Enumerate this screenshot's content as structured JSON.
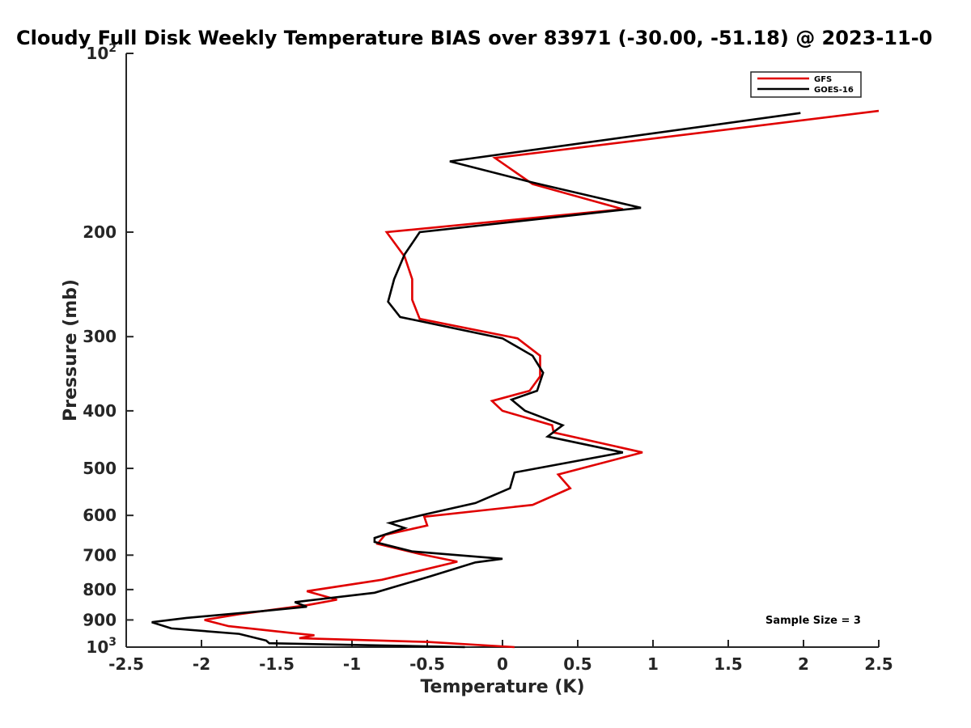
{
  "chart_data": {
    "type": "line",
    "title": "Cloudy Full Disk Weekly Temperature BIAS over 83971 (-30.00, -51.18) @ 2023-11-0",
    "xlabel": "Temperature (K)",
    "ylabel": "Pressure (mb)",
    "xlim": [
      -2.5,
      2.5
    ],
    "ylim": [
      100,
      1000
    ],
    "y_scale": "log",
    "y_direction": "reversed",
    "x_ticks": [
      "-2.5",
      "-2",
      "-1.5",
      "-1",
      "-0.5",
      "0",
      "0.5",
      "1",
      "1.5",
      "2",
      "2.5"
    ],
    "y_ticks": [
      {
        "value": 100,
        "base": "10",
        "exp": "2"
      },
      {
        "value": 200,
        "label": "200"
      },
      {
        "value": 300,
        "label": "300"
      },
      {
        "value": 400,
        "label": "400"
      },
      {
        "value": 500,
        "label": "500"
      },
      {
        "value": 600,
        "label": "600"
      },
      {
        "value": 700,
        "label": "700"
      },
      {
        "value": 800,
        "label": "800"
      },
      {
        "value": 900,
        "label": "900"
      },
      {
        "value": 1000,
        "base": "10",
        "exp": "3"
      }
    ],
    "grid": false,
    "legend_position": "top-right",
    "annotation": "Sample Size = 3",
    "series": [
      {
        "name": "GFS",
        "color": "#e00000",
        "points": [
          [
            2.5,
            125
          ],
          [
            -0.05,
            150
          ],
          [
            0.2,
            166
          ],
          [
            0.8,
            183
          ],
          [
            -0.77,
            200
          ],
          [
            -0.65,
            220
          ],
          [
            -0.6,
            240
          ],
          [
            -0.6,
            260
          ],
          [
            -0.55,
            280
          ],
          [
            0.1,
            302
          ],
          [
            0.25,
            323
          ],
          [
            0.25,
            350
          ],
          [
            0.18,
            370
          ],
          [
            -0.07,
            385
          ],
          [
            0.0,
            400
          ],
          [
            0.33,
            423
          ],
          [
            0.34,
            435
          ],
          [
            0.93,
            470
          ],
          [
            0.37,
            512
          ],
          [
            0.45,
            540
          ],
          [
            0.2,
            576
          ],
          [
            -0.52,
            603
          ],
          [
            -0.5,
            624
          ],
          [
            -0.78,
            647
          ],
          [
            -0.83,
            670
          ],
          [
            -0.55,
            697
          ],
          [
            -0.3,
            718
          ],
          [
            -0.8,
            770
          ],
          [
            -1.3,
            805
          ],
          [
            -1.1,
            832
          ],
          [
            -1.3,
            850
          ],
          [
            -1.75,
            880
          ],
          [
            -1.98,
            900
          ],
          [
            -1.82,
            922
          ],
          [
            -1.4,
            947
          ],
          [
            -1.25,
            955
          ],
          [
            -1.35,
            966
          ],
          [
            -0.5,
            980
          ],
          [
            0.08,
            1000
          ]
        ]
      },
      {
        "name": "GOES-16",
        "color": "#000000",
        "points": [
          [
            1.98,
            126
          ],
          [
            -0.35,
            152
          ],
          [
            0.2,
            165
          ],
          [
            0.92,
            182
          ],
          [
            -0.55,
            200
          ],
          [
            -0.65,
            218
          ],
          [
            -0.72,
            240
          ],
          [
            -0.76,
            262
          ],
          [
            -0.68,
            278
          ],
          [
            0.0,
            302
          ],
          [
            0.2,
            323
          ],
          [
            0.27,
            345
          ],
          [
            0.23,
            370
          ],
          [
            0.06,
            383
          ],
          [
            0.15,
            400
          ],
          [
            0.4,
            423
          ],
          [
            0.3,
            442
          ],
          [
            0.8,
            470
          ],
          [
            0.08,
            508
          ],
          [
            0.05,
            540
          ],
          [
            -0.18,
            572
          ],
          [
            -0.52,
            598
          ],
          [
            -0.75,
            618
          ],
          [
            -0.65,
            630
          ],
          [
            -0.85,
            655
          ],
          [
            -0.85,
            665
          ],
          [
            -0.6,
            690
          ],
          [
            0.0,
            710
          ],
          [
            -0.18,
            720
          ],
          [
            -0.48,
            760
          ],
          [
            -0.85,
            810
          ],
          [
            -1.38,
            840
          ],
          [
            -1.3,
            855
          ],
          [
            -1.6,
            870
          ],
          [
            -2.1,
            893
          ],
          [
            -2.33,
            908
          ],
          [
            -2.2,
            930
          ],
          [
            -1.75,
            950
          ],
          [
            -1.57,
            975
          ],
          [
            -1.55,
            985
          ],
          [
            -0.25,
            1000
          ]
        ]
      }
    ]
  }
}
